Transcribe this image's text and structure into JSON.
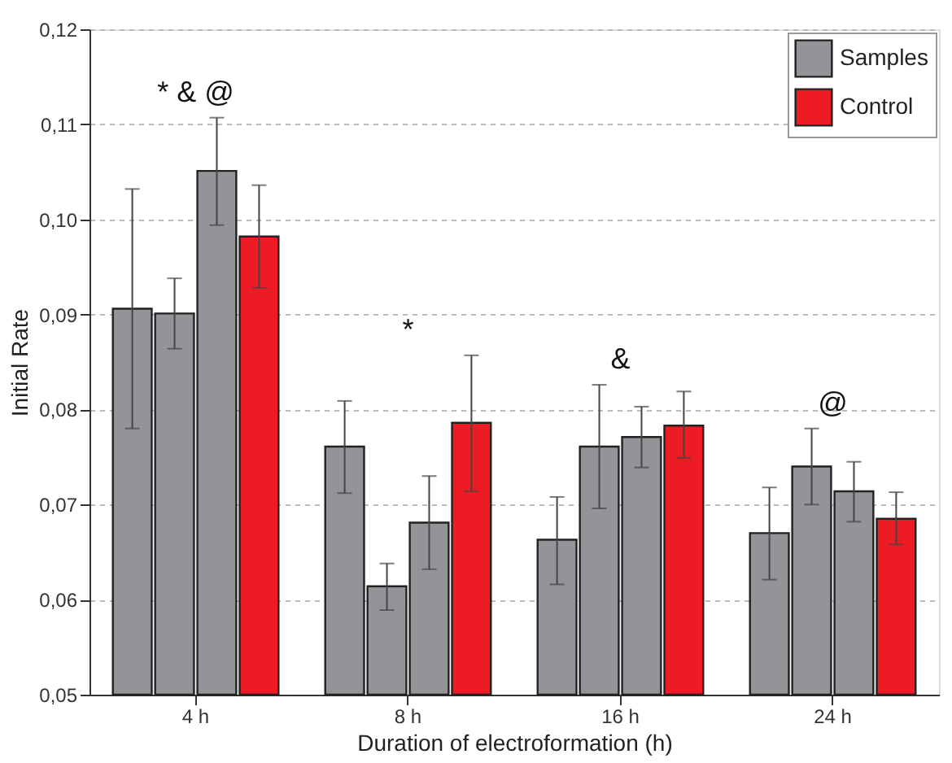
{
  "chart_data": {
    "type": "bar",
    "xlabel": "Duration of electroformation (h)",
    "ylabel": "Initial Rate",
    "categories": [
      "4 h",
      "8 h",
      "16 h",
      "24 h"
    ],
    "series": [
      {
        "name": "Samples",
        "color": "#929497",
        "values": [
          0.0906,
          0.0761,
          0.0663,
          0.067
        ],
        "errors": [
          [
            0.078,
            0.1032
          ],
          [
            0.0712,
            0.0809
          ],
          [
            0.0616,
            0.0708
          ],
          [
            0.0621,
            0.0718
          ]
        ]
      },
      {
        "color": "#929497",
        "values": [
          0.0901,
          0.0614,
          0.0761,
          0.074
        ],
        "errors": [
          [
            0.0864,
            0.0938
          ],
          [
            0.0589,
            0.0638
          ],
          [
            0.0696,
            0.0826
          ],
          [
            0.07,
            0.078
          ]
        ]
      },
      {
        "color": "#929497",
        "values": [
          0.1051,
          0.0681,
          0.0771,
          0.0714
        ],
        "errors": [
          [
            0.0994,
            0.1107
          ],
          [
            0.0632,
            0.073
          ],
          [
            0.0739,
            0.0803
          ],
          [
            0.0682,
            0.0745
          ]
        ]
      },
      {
        "name": "Control",
        "color": "#ed1c24",
        "values": [
          0.0982,
          0.0786,
          0.0783,
          0.0685
        ],
        "errors": [
          [
            0.0928,
            0.1036
          ],
          [
            0.0714,
            0.0857
          ],
          [
            0.0749,
            0.0819
          ],
          [
            0.0658,
            0.0713
          ]
        ]
      }
    ],
    "ylim": [
      0.05,
      0.12
    ],
    "yticks": [
      {
        "value": 0.05,
        "label": "0,05"
      },
      {
        "value": 0.06,
        "label": "0,06"
      },
      {
        "value": 0.07,
        "label": "0,07"
      },
      {
        "value": 0.08,
        "label": "0,08"
      },
      {
        "value": 0.09,
        "label": "0,09"
      },
      {
        "value": 0.1,
        "label": "0,10"
      },
      {
        "value": 0.11,
        "label": "0,11"
      },
      {
        "value": 0.12,
        "label": "0,12"
      }
    ],
    "annotations": [
      "* & @",
      "*",
      "&",
      "@"
    ],
    "grid": "y",
    "legend": "top right"
  }
}
